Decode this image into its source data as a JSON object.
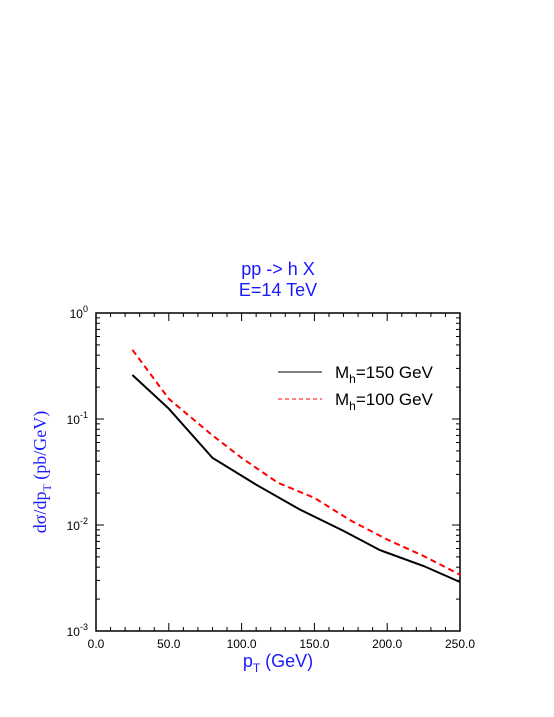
{
  "chart_data": {
    "type": "line",
    "title_lines": [
      "pp -> h X",
      "E=14 TeV"
    ],
    "xlabel": {
      "main": "p",
      "sub": "T",
      "rest": " (GeV)"
    },
    "ylabel": {
      "pre": "dσ/dp",
      "sub": "T",
      "post": " (pb/GeV)"
    },
    "xlim": [
      0,
      250
    ],
    "ylim": [
      0.001,
      1
    ],
    "yscale": "log",
    "xticks": [
      {
        "value": 0,
        "label": "0.0"
      },
      {
        "value": 50,
        "label": "50.0"
      },
      {
        "value": 100,
        "label": "100.0"
      },
      {
        "value": 150,
        "label": "150.0"
      },
      {
        "value": 200,
        "label": "200.0"
      },
      {
        "value": 250,
        "label": "250.0"
      }
    ],
    "yticks": [
      {
        "value": 1,
        "base": "10",
        "exp": "0"
      },
      {
        "value": 0.1,
        "base": "10",
        "exp": "-1"
      },
      {
        "value": 0.01,
        "base": "10",
        "exp": "-2"
      },
      {
        "value": 0.001,
        "base": "10",
        "exp": "-3"
      }
    ],
    "legend_position": "top-right",
    "series": [
      {
        "label_main": "M",
        "label_sub": "h",
        "label_rest": "=150 GeV",
        "color": "#000000",
        "style": "solid",
        "x": [
          25,
          50,
          80,
          110,
          140,
          170,
          195,
          225,
          250
        ],
        "y": [
          0.26,
          0.125,
          0.043,
          0.024,
          0.014,
          0.0088,
          0.0058,
          0.0041,
          0.0029
        ]
      },
      {
        "label_main": "M",
        "label_sub": "h",
        "label_rest": "=100 GeV",
        "color": "#ff0000",
        "style": "dashed",
        "x": [
          25,
          50,
          80,
          100,
          125,
          150,
          175,
          200,
          225,
          250
        ],
        "y": [
          0.45,
          0.155,
          0.07,
          0.043,
          0.025,
          0.018,
          0.011,
          0.0073,
          0.0051,
          0.0034
        ]
      }
    ]
  }
}
